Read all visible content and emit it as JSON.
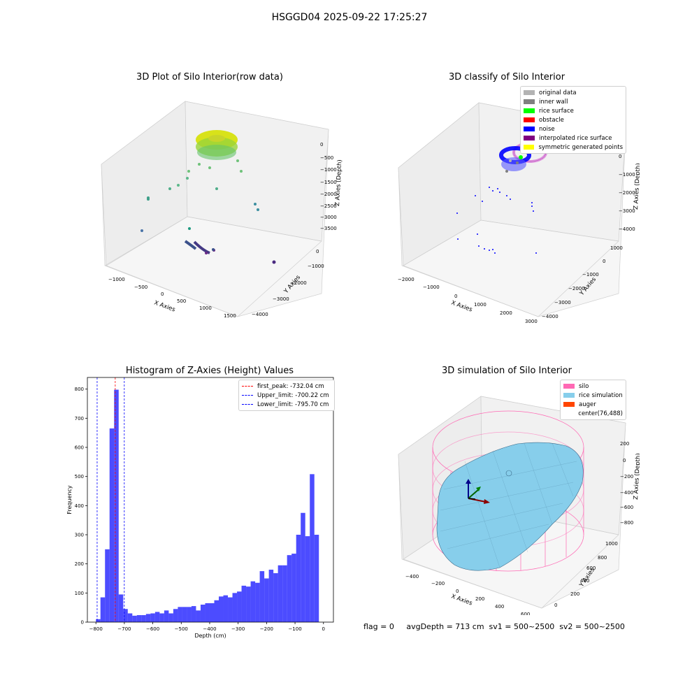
{
  "suptitle": "HSGGD04 2025-09-22 17:25:27",
  "status_text": "flag = 0     avgDepth = 713 cm  sv1 = 500~2500  sv2 = 500~2500",
  "panels": {
    "raw": {
      "title": "3D Plot of Silo Interior(row data)",
      "xlabel": "X Axies",
      "ylabel": "Y Axies",
      "zlabel": "Z Axies (Depth)",
      "xticks": [
        "−1000",
        "−500",
        "0",
        "500",
        "1000",
        "1500"
      ],
      "yticks": [
        "0",
        "−1000",
        "−2000",
        "−3000",
        "−4000"
      ],
      "zticks": [
        "0",
        "−500",
        "−1000",
        "−1500",
        "−2000",
        "−2500",
        "−3000",
        "−3500"
      ]
    },
    "classify": {
      "title": "3D classify of Silo Interior",
      "xlabel": "X Axies",
      "ylabel": "Y Axies",
      "zlabel": "Z Axies (Depth)",
      "xticks": [
        "−2000",
        "−1000",
        "0",
        "1000",
        "2000",
        "3000"
      ],
      "yticks": [
        "1000",
        "0",
        "−1000",
        "−2000",
        "−3000",
        "−4000"
      ],
      "zticks": [
        "0",
        "−1000",
        "−2000",
        "−3000",
        "−4000"
      ],
      "legend": [
        {
          "label": "original data",
          "color": "#b3b3b3"
        },
        {
          "label": "inner wall",
          "color": "#808080"
        },
        {
          "label": "rice surface",
          "color": "#00ff00"
        },
        {
          "label": "obstacle",
          "color": "#ff0000"
        },
        {
          "label": "noise",
          "color": "#0000ff"
        },
        {
          "label": "interpolated rice surface",
          "color": "#800080"
        },
        {
          "label": "symmetric generated points",
          "color": "#ffff00"
        }
      ]
    },
    "simulation": {
      "title": "3D simulation of Silo Interior",
      "xlabel": "X Axies",
      "ylabel": "Y Axies",
      "zlabel": "Z Axies (Depth)",
      "xticks": [
        "−400",
        "−200",
        "0",
        "200",
        "400",
        "600"
      ],
      "yticks": [
        "0",
        "200",
        "400",
        "600",
        "800",
        "1000"
      ],
      "zticks": [
        "200",
        "0",
        "−200",
        "−400",
        "−600",
        "−800"
      ],
      "legend": [
        {
          "label": "silo",
          "color": "#ff69b4"
        },
        {
          "label": "rice simulation",
          "color": "#87ceeb"
        },
        {
          "label": "auger",
          "color": "#ff4500"
        },
        {
          "label": "center(76,488)",
          "color": ""
        }
      ]
    }
  },
  "chart_data": {
    "type": "bar",
    "title": "Histogram of Z-Axies (Height) Values",
    "xlabel": "Depth (cm)",
    "ylabel": "Frequency",
    "xlim": [
      -830,
      35
    ],
    "ylim": [
      0,
      840
    ],
    "xticks": [
      -800,
      -700,
      -600,
      -500,
      -400,
      -300,
      -200,
      -100,
      0
    ],
    "yticks": [
      0,
      100,
      200,
      300,
      400,
      500,
      600,
      700,
      800
    ],
    "bar_color": "#0000ff",
    "bin_start": -800,
    "bin_width": 16,
    "values": [
      10,
      85,
      250,
      665,
      798,
      95,
      45,
      30,
      22,
      24,
      24,
      28,
      30,
      35,
      30,
      40,
      30,
      45,
      52,
      52,
      52,
      55,
      40,
      60,
      65,
      65,
      75,
      88,
      92,
      85,
      100,
      105,
      125,
      122,
      140,
      135,
      175,
      150,
      180,
      168,
      195,
      195,
      230,
      235,
      300,
      375,
      295,
      508,
      300
    ],
    "vlines": [
      {
        "label": "first_peak: -732.04 cm",
        "x": -732.04,
        "color": "#ff0000"
      },
      {
        "label": "Upper_limit: -700.22 cm",
        "x": -700.22,
        "color": "#0000ff"
      },
      {
        "label": "Lower_limit: -795.70 cm",
        "x": -795.7,
        "color": "#0000ff"
      }
    ],
    "legend_position": "top-right"
  }
}
